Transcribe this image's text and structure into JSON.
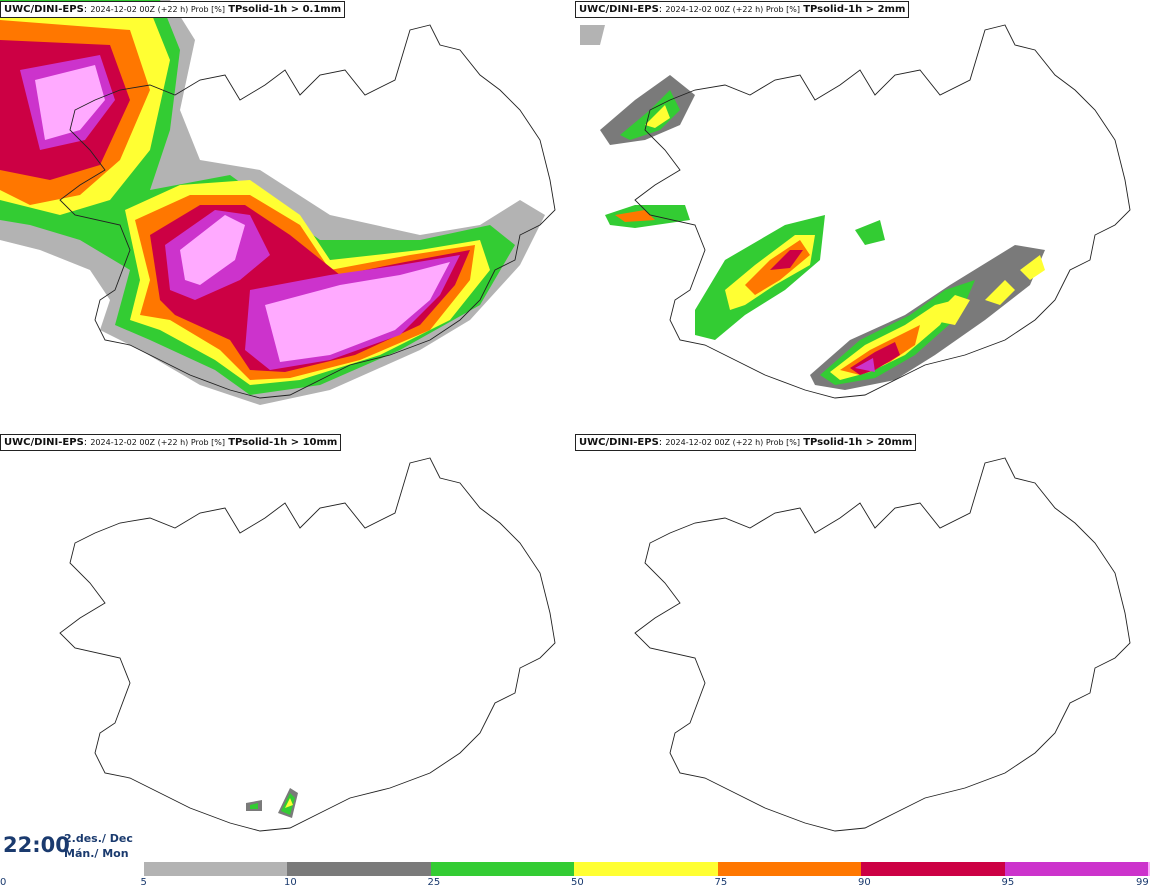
{
  "panels": [
    {
      "model": "UWC/DINI-EPS",
      "run": "2024-12-02 00Z (+22 h) Prob [%]",
      "variable": "TPsolid-1h > 0.1mm"
    },
    {
      "model": "UWC/DINI-EPS",
      "run": "2024-12-02 00Z (+22 h) Prob [%]",
      "variable": "TPsolid-1h > 2mm"
    },
    {
      "model": "UWC/DINI-EPS",
      "run": "2024-12-02 00Z (+22 h) Prob [%]",
      "variable": "TPsolid-1h > 10mm"
    },
    {
      "model": "UWC/DINI-EPS",
      "run": "2024-12-02 00Z (+22 h) Prob [%]",
      "variable": "TPsolid-1h > 20mm"
    }
  ],
  "valid_time": {
    "time": "22:00",
    "date_line1": "2.des./ Dec",
    "date_line2": "Mán./ Mon"
  },
  "legend": {
    "ticks": [
      "0",
      "5",
      "10",
      "25",
      "50",
      "75",
      "90",
      "95",
      "99"
    ],
    "classes": [
      {
        "from": 5,
        "to": 10,
        "color": "#b3b3b3"
      },
      {
        "from": 10,
        "to": 25,
        "color": "#7a7a7a"
      },
      {
        "from": 25,
        "to": 50,
        "color": "#33cc33"
      },
      {
        "from": 50,
        "to": 75,
        "color": "#ffff33"
      },
      {
        "from": 75,
        "to": 90,
        "color": "#ff7700"
      },
      {
        "from": 90,
        "to": 95,
        "color": "#cc0044"
      },
      {
        "from": 95,
        "to": 99,
        "color": "#cc33cc"
      },
      {
        "from": 99,
        "to": 100,
        "color": "#ffaaff"
      }
    ]
  }
}
